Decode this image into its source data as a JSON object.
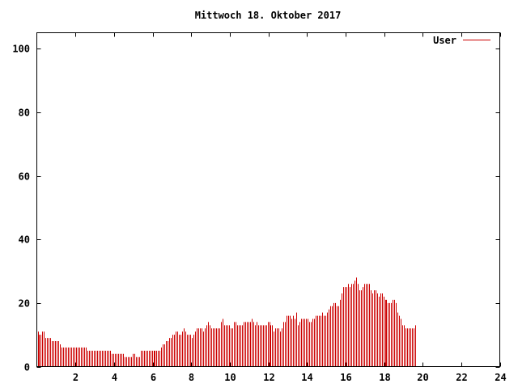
{
  "chart_data": {
    "type": "bar",
    "title": "Mittwoch 18. Oktober 2017",
    "xlabel": "",
    "ylabel": "",
    "xlim": [
      0,
      24
    ],
    "ylim": [
      0,
      105
    ],
    "x_ticks": [
      2,
      4,
      6,
      8,
      10,
      12,
      14,
      16,
      18,
      20,
      22,
      24
    ],
    "y_ticks": [
      0,
      20,
      40,
      60,
      80,
      100
    ],
    "grid": false,
    "legend_position": "top-right",
    "bar_color": "#cc0000",
    "step_minutes": 5,
    "series": [
      {
        "name": "User",
        "values": [
          11,
          10,
          10,
          11,
          11,
          9,
          9,
          9,
          9,
          8,
          8,
          8,
          8,
          8,
          7,
          6,
          6,
          6,
          6,
          6,
          6,
          6,
          6,
          6,
          6,
          6,
          6,
          6,
          6,
          6,
          6,
          5,
          5,
          5,
          5,
          5,
          5,
          5,
          5,
          5,
          5,
          5,
          5,
          5,
          5,
          5,
          4,
          4,
          4,
          4,
          4,
          4,
          4,
          4,
          3,
          3,
          3,
          3,
          3,
          4,
          4,
          3,
          3,
          3,
          5,
          5,
          5,
          5,
          5,
          5,
          5,
          5,
          5,
          5,
          5,
          5,
          5,
          6,
          7,
          7,
          8,
          8,
          9,
          9,
          10,
          10,
          11,
          11,
          10,
          10,
          11,
          12,
          11,
          10,
          10,
          10,
          9,
          10,
          11,
          12,
          12,
          12,
          12,
          11,
          12,
          13,
          14,
          13,
          12,
          12,
          12,
          12,
          12,
          12,
          14,
          15,
          13,
          13,
          13,
          13,
          12,
          12,
          14,
          14,
          13,
          13,
          13,
          13,
          14,
          14,
          14,
          14,
          14,
          15,
          14,
          13,
          14,
          13,
          13,
          13,
          13,
          13,
          13,
          14,
          14,
          13,
          13,
          11,
          12,
          12,
          12,
          11,
          12,
          14,
          14,
          16,
          16,
          16,
          15,
          16,
          15,
          17,
          13,
          14,
          15,
          15,
          15,
          15,
          15,
          14,
          14,
          15,
          15,
          16,
          16,
          16,
          16,
          17,
          16,
          16,
          17,
          18,
          19,
          19,
          20,
          20,
          19,
          19,
          21,
          23,
          25,
          25,
          25,
          26,
          25,
          26,
          26,
          27,
          28,
          26,
          24,
          24,
          25,
          26,
          26,
          26,
          26,
          24,
          23,
          24,
          24,
          23,
          22,
          23,
          23,
          22,
          21,
          21,
          20,
          20,
          20,
          21,
          21,
          20,
          17,
          16,
          15,
          13,
          13,
          12,
          12,
          12,
          12,
          12,
          12,
          13
        ]
      }
    ]
  }
}
